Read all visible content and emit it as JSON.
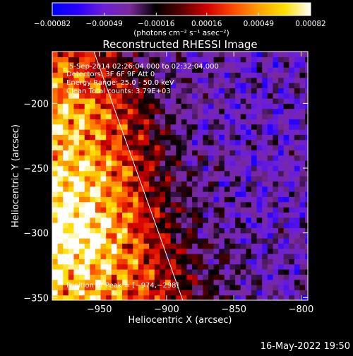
{
  "chart_data": {
    "type": "heatmap",
    "title": "Reconstructed RHESSI Image",
    "xlabel": "Heliocentric X (arcsec)",
    "ylabel": "Heliocentric Y (arcsec)",
    "xlim": [
      -985,
      -795
    ],
    "ylim": [
      -352,
      -160
    ],
    "x_ticks": [
      -950,
      -900,
      -850,
      -800
    ],
    "x_tick_labels": [
      "−950",
      "−900",
      "−850",
      "−800"
    ],
    "y_ticks": [
      -200,
      -250,
      -300,
      -350
    ],
    "y_tick_labels": [
      "−200",
      "−250",
      "−300",
      "−350"
    ],
    "colorbar": {
      "range": [
        -0.00082,
        0.00082
      ],
      "ticks": [
        -0.00082,
        -0.00049,
        -0.00016,
        0.00016,
        0.00049,
        0.00082
      ],
      "tick_labels": [
        "−0.00082",
        "−0.00049",
        "−0.00016",
        "0.00016",
        "0.00049",
        "0.00082"
      ],
      "unit": "(photons cm⁻² s⁻¹ asec⁻²)",
      "colormap": [
        "#0000ff",
        "#2a00ff",
        "#6d1fd8",
        "#7a2a9a",
        "#000000",
        "#5a0000",
        "#d40000",
        "#ff4a00",
        "#ffa000",
        "#ffe000",
        "#ffffff"
      ]
    },
    "limb_line": [
      [
        -954,
        -160
      ],
      [
        -888,
        -352
      ]
    ],
    "annotations": [
      "5-Sep-2014 02:26:04.000 to 02:32:04.000",
      "Detectors: 3F 6F 9F  Att 0",
      "Energy Range: 25.0 - 50.0 keV",
      "Clean     Total counts: 3.79E+03"
    ],
    "peak_label": "Position of Peak = [−974,−298]",
    "peak_position": [
      -974,
      -298
    ]
  },
  "footer": {
    "timestamp": "16-May-2022 19:50"
  }
}
